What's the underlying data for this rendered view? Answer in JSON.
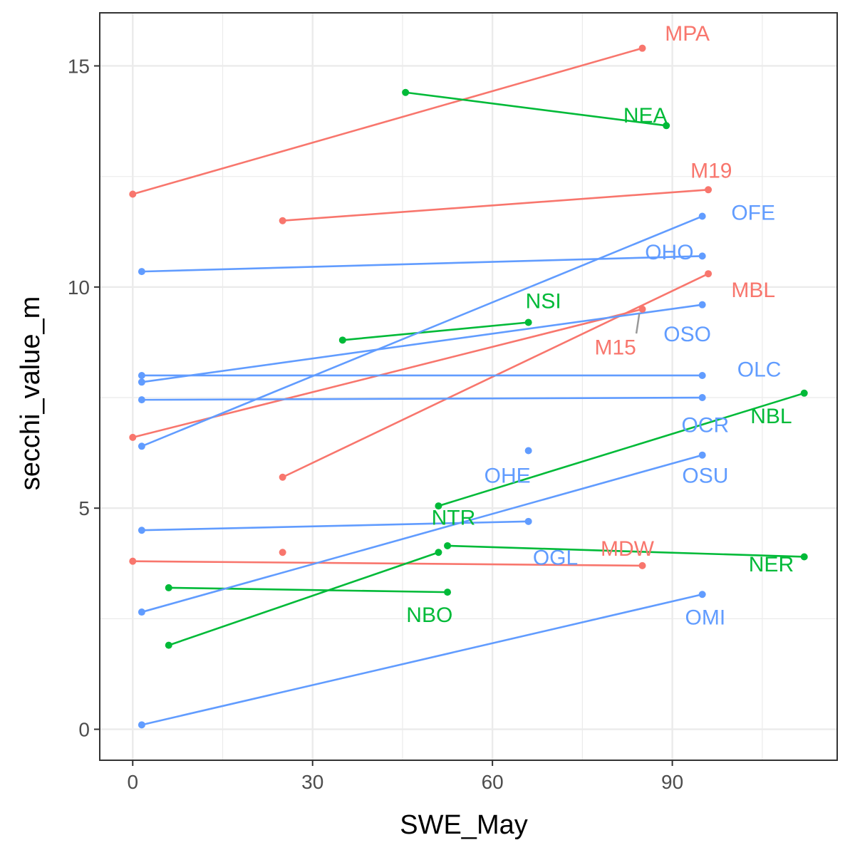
{
  "colors": {
    "M": "#F8766D",
    "N": "#00BA38",
    "O": "#619CFF",
    "panel_border": "#333333",
    "grid": "#ebebeb",
    "leader": "#999999"
  },
  "chart_data": {
    "type": "line",
    "xlabel": "SWE_May",
    "ylabel": "secchi_value_m",
    "xlim": [
      -5.5,
      117.5
    ],
    "ylim": [
      -0.7,
      16.2
    ],
    "x_ticks": [
      0,
      30,
      60,
      90
    ],
    "y_ticks": [
      0,
      5,
      10,
      15
    ],
    "grid": true,
    "legend": "none",
    "series": [
      {
        "name": "MPA",
        "group": "M",
        "x": [
          0,
          85
        ],
        "y": [
          12.1,
          15.4
        ]
      },
      {
        "name": "M19",
        "group": "M",
        "x": [
          25,
          96
        ],
        "y": [
          11.5,
          12.2
        ]
      },
      {
        "name": "MBL",
        "group": "M",
        "x": [
          25,
          96
        ],
        "y": [
          5.7,
          10.3
        ]
      },
      {
        "name": "M15",
        "group": "M",
        "x": [
          0,
          85
        ],
        "y": [
          6.6,
          9.5
        ]
      },
      {
        "name": "MDW",
        "group": "M",
        "x": [
          0,
          85
        ],
        "y": [
          3.8,
          3.7
        ]
      },
      {
        "name": "MDW",
        "group": "M",
        "x": [
          25
        ],
        "y": [
          4.0
        ]
      },
      {
        "name": "NEA",
        "group": "N",
        "x": [
          45.5,
          89
        ],
        "y": [
          14.4,
          13.65
        ]
      },
      {
        "name": "NSI",
        "group": "N",
        "x": [
          35,
          66
        ],
        "y": [
          8.8,
          9.2
        ]
      },
      {
        "name": "NBL",
        "group": "N",
        "x": [
          51,
          112
        ],
        "y": [
          5.05,
          7.6
        ]
      },
      {
        "name": "NTR",
        "group": "N",
        "x": [
          6,
          51
        ],
        "y": [
          1.9,
          4.0
        ]
      },
      {
        "name": "NER",
        "group": "N",
        "x": [
          52.5,
          112
        ],
        "y": [
          4.15,
          3.9
        ]
      },
      {
        "name": "NBO",
        "group": "N",
        "x": [
          6,
          52.5
        ],
        "y": [
          3.2,
          3.1
        ]
      },
      {
        "name": "OFE",
        "group": "O",
        "x": [
          1.5,
          95
        ],
        "y": [
          6.4,
          11.6
        ]
      },
      {
        "name": "OHO",
        "group": "O",
        "x": [
          1.5,
          95
        ],
        "y": [
          10.35,
          10.7
        ]
      },
      {
        "name": "OSO",
        "group": "O",
        "x": [
          1.5,
          95
        ],
        "y": [
          7.85,
          9.6
        ]
      },
      {
        "name": "OLC",
        "group": "O",
        "x": [
          1.5,
          95
        ],
        "y": [
          8.0,
          8.0
        ]
      },
      {
        "name": "OCR",
        "group": "O",
        "x": [
          1.5,
          95
        ],
        "y": [
          7.45,
          7.5
        ]
      },
      {
        "name": "OSU",
        "group": "O",
        "x": [
          1.5,
          95
        ],
        "y": [
          2.65,
          6.2
        ]
      },
      {
        "name": "OHE",
        "group": "O",
        "x": [
          66
        ],
        "y": [
          6.3
        ]
      },
      {
        "name": "OGL",
        "group": "O",
        "x": [
          1.5,
          66
        ],
        "y": [
          4.5,
          4.7
        ]
      },
      {
        "name": "OMI",
        "group": "O",
        "x": [
          1.5,
          95
        ],
        "y": [
          0.1,
          3.05
        ]
      }
    ],
    "annotations": [
      {
        "text": "MPA",
        "group": "M",
        "x": 92.5,
        "y": 15.75
      },
      {
        "text": "M19",
        "group": "M",
        "x": 96.5,
        "y": 12.65
      },
      {
        "text": "MBL",
        "group": "M",
        "x": 103.5,
        "y": 9.95
      },
      {
        "text": "M15",
        "group": "M",
        "x": 80.5,
        "y": 8.65,
        "leader": [
          [
            84.5,
            9.4
          ],
          [
            84.0,
            8.95
          ]
        ]
      },
      {
        "text": "MDW",
        "group": "M",
        "x": 82.5,
        "y": 4.1
      },
      {
        "text": "NEA",
        "group": "N",
        "x": 85.5,
        "y": 13.9
      },
      {
        "text": "NSI",
        "group": "N",
        "x": 68.5,
        "y": 9.7
      },
      {
        "text": "NBL",
        "group": "N",
        "x": 106.5,
        "y": 7.1
      },
      {
        "text": "NTR",
        "group": "N",
        "x": 53.5,
        "y": 4.8
      },
      {
        "text": "NER",
        "group": "N",
        "x": 106.5,
        "y": 3.75
      },
      {
        "text": "NBO",
        "group": "N",
        "x": 49.5,
        "y": 2.6
      },
      {
        "text": "OFE",
        "group": "O",
        "x": 103.5,
        "y": 11.7
      },
      {
        "text": "OHO",
        "group": "O",
        "x": 89.5,
        "y": 10.8
      },
      {
        "text": "OSO",
        "group": "O",
        "x": 92.5,
        "y": 8.95
      },
      {
        "text": "OLC",
        "group": "O",
        "x": 104.5,
        "y": 8.15
      },
      {
        "text": "OCR",
        "group": "O",
        "x": 95.5,
        "y": 6.9
      },
      {
        "text": "OSU",
        "group": "O",
        "x": 95.5,
        "y": 5.75
      },
      {
        "text": "OHE",
        "group": "O",
        "x": 62.5,
        "y": 5.75
      },
      {
        "text": "OGL",
        "group": "O",
        "x": 70.5,
        "y": 3.9
      },
      {
        "text": "OMI",
        "group": "O",
        "x": 95.5,
        "y": 2.55
      }
    ]
  }
}
